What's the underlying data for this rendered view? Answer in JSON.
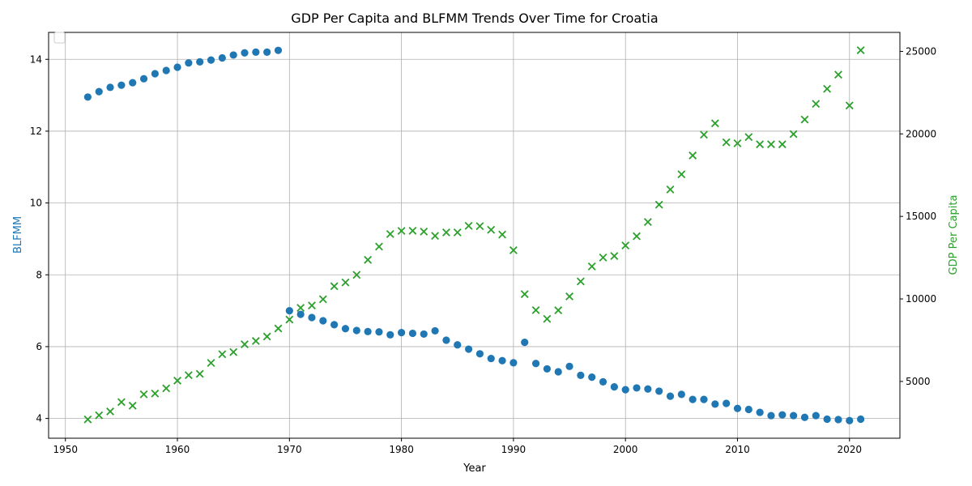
{
  "chart_data": {
    "type": "scatter",
    "title": "GDP Per Capita and BLFMM Trends Over Time for Croatia",
    "xlabel": "Year",
    "ylabel_left": "BLFMM",
    "ylabel_right": "GDP Per Capita",
    "xlim": [
      1948.5,
      2024.5
    ],
    "ylim_left": [
      3.45,
      14.75
    ],
    "ylim_right": [
      1560,
      26150
    ],
    "x_ticks": [
      1950,
      1960,
      1970,
      1980,
      1990,
      2000,
      2010,
      2020
    ],
    "y_ticks_left": [
      4,
      6,
      8,
      10,
      12,
      14
    ],
    "y_ticks_right": [
      5000,
      10000,
      15000,
      20000,
      25000
    ],
    "y_tick_labels_left": [
      "4",
      "6",
      "8",
      "10",
      "12",
      "14"
    ],
    "y_tick_labels_right": [
      "5000",
      "10000",
      "15000",
      "20000",
      "25000"
    ],
    "grid": true,
    "legend": "upper left (empty)",
    "colors": {
      "blfmm": "#1f77b4",
      "gdp": "#2ca02c",
      "grid": "#b0b0b0",
      "axis": "#000000"
    },
    "series": [
      {
        "name": "BLFMM",
        "axis": "left",
        "marker": "circle",
        "x": [
          1952,
          1953,
          1954,
          1955,
          1956,
          1957,
          1958,
          1959,
          1960,
          1961,
          1962,
          1963,
          1964,
          1965,
          1966,
          1967,
          1968,
          1969,
          1970,
          1971,
          1972,
          1973,
          1974,
          1975,
          1976,
          1977,
          1978,
          1979,
          1980,
          1981,
          1982,
          1983,
          1984,
          1985,
          1986,
          1987,
          1988,
          1989,
          1990,
          1991,
          1992,
          1993,
          1994,
          1995,
          1996,
          1997,
          1998,
          1999,
          2000,
          2001,
          2002,
          2003,
          2004,
          2005,
          2006,
          2007,
          2008,
          2009,
          2010,
          2011,
          2012,
          2013,
          2014,
          2015,
          2016,
          2017,
          2018,
          2019,
          2020,
          2021
        ],
        "y": [
          12.95,
          13.1,
          13.22,
          13.28,
          13.35,
          13.46,
          13.6,
          13.69,
          13.78,
          13.9,
          13.93,
          13.98,
          14.04,
          14.12,
          14.18,
          14.2,
          14.2,
          14.25,
          7.0,
          6.9,
          6.81,
          6.72,
          6.61,
          6.5,
          6.45,
          6.42,
          6.41,
          6.33,
          6.39,
          6.37,
          6.35,
          6.44,
          6.18,
          6.05,
          5.93,
          5.8,
          5.67,
          5.61,
          5.55,
          6.12,
          5.53,
          5.38,
          5.3,
          5.45,
          5.2,
          5.15,
          5.02,
          4.88,
          4.8,
          4.85,
          4.82,
          4.76,
          4.62,
          4.67,
          4.53,
          4.53,
          4.4,
          4.42,
          4.28,
          4.25,
          4.17,
          4.08,
          4.1,
          4.08,
          4.03,
          4.08,
          3.98,
          3.97,
          3.94,
          3.98
        ]
      },
      {
        "name": "GDP Per Capita",
        "axis": "right",
        "marker": "x",
        "x": [
          1952,
          1953,
          1954,
          1955,
          1956,
          1957,
          1958,
          1959,
          1960,
          1961,
          1962,
          1963,
          1964,
          1965,
          1966,
          1967,
          1968,
          1969,
          1970,
          1971,
          1972,
          1973,
          1974,
          1975,
          1976,
          1977,
          1978,
          1979,
          1980,
          1981,
          1982,
          1983,
          1984,
          1985,
          1986,
          1987,
          1988,
          1989,
          1990,
          1991,
          1992,
          1993,
          1994,
          1995,
          1996,
          1997,
          1998,
          1999,
          2000,
          2001,
          2002,
          2003,
          2004,
          2005,
          2006,
          2007,
          2008,
          2009,
          2010,
          2011,
          2012,
          2013,
          2014,
          2015,
          2016,
          2017,
          2018,
          2019,
          2020,
          2021
        ],
        "y": [
          2700,
          2950,
          3180,
          3750,
          3530,
          4220,
          4270,
          4580,
          5050,
          5380,
          5460,
          6120,
          6650,
          6780,
          7250,
          7450,
          7720,
          8210,
          8750,
          9460,
          9600,
          9980,
          10770,
          11000,
          11460,
          12370,
          13170,
          13930,
          14120,
          14130,
          14080,
          13820,
          14030,
          14030,
          14430,
          14410,
          14190,
          13900,
          12950,
          10290,
          9320,
          8790,
          9310,
          10150,
          11060,
          11970,
          12510,
          12600,
          13240,
          13800,
          14660,
          15710,
          16630,
          17550,
          18690,
          19950,
          20640,
          19490,
          19430,
          19810,
          19370,
          19370,
          19370,
          19990,
          20870,
          21820,
          22730,
          23590,
          21720,
          25070
        ]
      }
    ]
  }
}
